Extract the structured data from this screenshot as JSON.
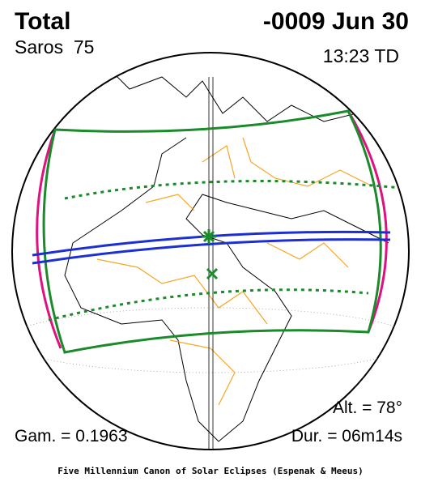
{
  "header": {
    "title": "Total",
    "date": "-0009 Jun 30",
    "saros": "Saros  75",
    "time": "13:23 TD"
  },
  "details": {
    "altitude": "Alt. = 78°",
    "gamma": "Gam. = 0.1963",
    "duration": "Dur. = 06m14s"
  },
  "footer": "Five Millennium Canon of Solar Eclipses (Espenak & Meeus)"
}
